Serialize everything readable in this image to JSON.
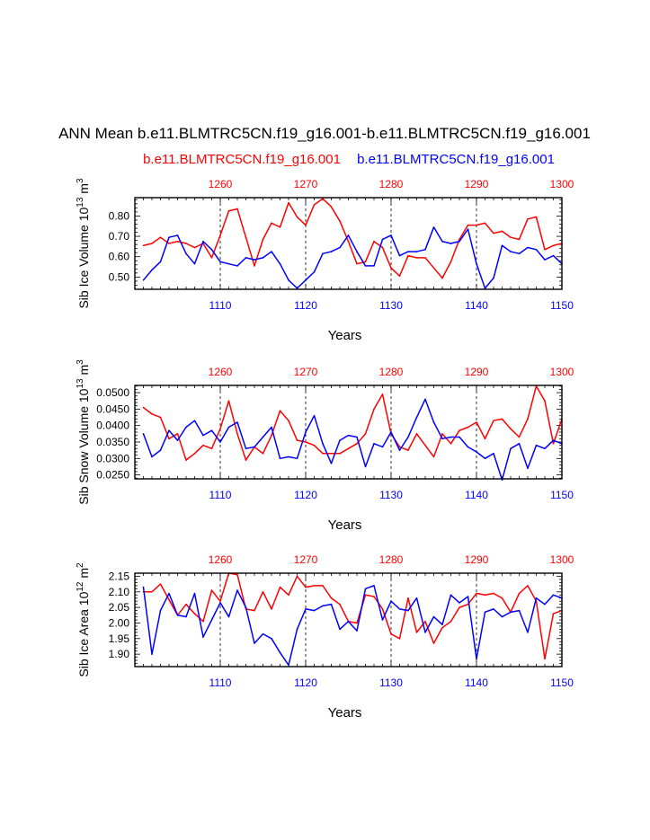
{
  "title": "ANN Mean b.e11.BLMTRC5CN.f19_g16.001-b.e11.BLMTRC5CN.f19_g16.001",
  "legend": {
    "red_label": "b.e11.BLMTRC5CN.f19_g16.001",
    "blue_label": "b.e11.BLMTRC5CN.f19_g16.001"
  },
  "colors": {
    "red": "#ff0000",
    "blue": "#0000ff",
    "axis": "#000000"
  },
  "chart_data": [
    {
      "type": "line",
      "ylabel": "Sib Ice Volume 10^13 m^3",
      "xlabel": "Years",
      "ylim": [
        0.44,
        0.89
      ],
      "yticks": [
        0.5,
        0.6,
        0.7,
        0.8
      ],
      "ytick_labels": [
        "0.50",
        "0.60",
        "0.70",
        "0.80"
      ],
      "x_bottom": {
        "range": [
          1100,
          1150
        ],
        "ticks": [
          1110,
          1120,
          1130,
          1140,
          1150
        ]
      },
      "x_top": {
        "range": [
          1250,
          1300
        ],
        "ticks": [
          1260,
          1270,
          1280,
          1290,
          1300
        ]
      },
      "vlines": [
        1110,
        1120,
        1130,
        1140
      ],
      "series": [
        {
          "name": "b.e11.BLMTRC5CN.f19_g16.001",
          "color": "red",
          "axis": "top",
          "x_start": 1251,
          "values": [
            0.655,
            0.665,
            0.695,
            0.665,
            0.675,
            0.665,
            0.645,
            0.665,
            0.595,
            0.705,
            0.825,
            0.835,
            0.695,
            0.555,
            0.685,
            0.765,
            0.745,
            0.865,
            0.795,
            0.755,
            0.855,
            0.885,
            0.845,
            0.775,
            0.675,
            0.565,
            0.575,
            0.675,
            0.645,
            0.545,
            0.505,
            0.605,
            0.595,
            0.595,
            0.545,
            0.495,
            0.575,
            0.685,
            0.755,
            0.755,
            0.765,
            0.715,
            0.725,
            0.695,
            0.685,
            0.785,
            0.795,
            0.635,
            0.655,
            0.665
          ]
        },
        {
          "name": "b.e11.BLMTRC5CN.f19_g16.001",
          "color": "blue",
          "axis": "bottom",
          "x_start": 1101,
          "values": [
            0.485,
            0.535,
            0.575,
            0.695,
            0.705,
            0.615,
            0.565,
            0.675,
            0.635,
            0.575,
            0.565,
            0.555,
            0.595,
            0.585,
            0.595,
            0.625,
            0.565,
            0.485,
            0.445,
            0.485,
            0.525,
            0.615,
            0.625,
            0.645,
            0.705,
            0.625,
            0.555,
            0.555,
            0.685,
            0.705,
            0.605,
            0.625,
            0.625,
            0.635,
            0.745,
            0.675,
            0.665,
            0.675,
            0.735,
            0.565,
            0.445,
            0.495,
            0.655,
            0.625,
            0.615,
            0.645,
            0.635,
            0.585,
            0.605,
            0.565
          ]
        }
      ]
    },
    {
      "type": "line",
      "ylabel": "Sib Snow Volume 10^13 m^3",
      "xlabel": "Years",
      "ylim": [
        0.0238,
        0.0522
      ],
      "yticks": [
        0.025,
        0.03,
        0.035,
        0.04,
        0.045,
        0.05
      ],
      "ytick_labels": [
        "0.0250",
        "0.0300",
        "0.0350",
        "0.0400",
        "0.0450",
        "0.0500"
      ],
      "x_bottom": {
        "range": [
          1100,
          1150
        ],
        "ticks": [
          1110,
          1120,
          1130,
          1140,
          1150
        ]
      },
      "x_top": {
        "range": [
          1250,
          1300
        ],
        "ticks": [
          1260,
          1270,
          1280,
          1290,
          1300
        ]
      },
      "vlines": [
        1110,
        1120,
        1130,
        1140
      ],
      "series": [
        {
          "name": "b.e11.BLMTRC5CN.f19_g16.001",
          "color": "red",
          "axis": "top",
          "x_start": 1251,
          "values": [
            0.0455,
            0.0435,
            0.0425,
            0.036,
            0.0375,
            0.0295,
            0.0315,
            0.034,
            0.033,
            0.039,
            0.0475,
            0.0375,
            0.0295,
            0.0335,
            0.0315,
            0.037,
            0.0445,
            0.0415,
            0.0355,
            0.035,
            0.034,
            0.0315,
            0.0315,
            0.0315,
            0.033,
            0.0345,
            0.0375,
            0.045,
            0.0495,
            0.0375,
            0.0335,
            0.0325,
            0.0375,
            0.034,
            0.0305,
            0.0375,
            0.0345,
            0.0385,
            0.0395,
            0.041,
            0.036,
            0.0415,
            0.042,
            0.039,
            0.0365,
            0.042,
            0.052,
            0.0475,
            0.0345,
            0.042
          ]
        },
        {
          "name": "b.e11.BLMTRC5CN.f19_g16.001",
          "color": "blue",
          "axis": "bottom",
          "x_start": 1101,
          "values": [
            0.0375,
            0.0305,
            0.0325,
            0.0385,
            0.0355,
            0.0395,
            0.0415,
            0.037,
            0.0385,
            0.035,
            0.0395,
            0.041,
            0.033,
            0.0335,
            0.0365,
            0.0395,
            0.03,
            0.0305,
            0.03,
            0.038,
            0.043,
            0.0345,
            0.0285,
            0.0355,
            0.037,
            0.0365,
            0.0275,
            0.0345,
            0.0335,
            0.038,
            0.0325,
            0.0365,
            0.0425,
            0.048,
            0.041,
            0.036,
            0.0365,
            0.0365,
            0.0335,
            0.032,
            0.03,
            0.0315,
            0.0235,
            0.033,
            0.0345,
            0.027,
            0.034,
            0.033,
            0.0355,
            0.0345
          ]
        }
      ]
    },
    {
      "type": "line",
      "ylabel": "Sib Ice Area 10^12 m^2",
      "xlabel": "Years",
      "ylim": [
        1.86,
        2.16
      ],
      "yticks": [
        1.9,
        1.95,
        2.0,
        2.05,
        2.1,
        2.15
      ],
      "ytick_labels": [
        "1.90",
        "1.95",
        "2.00",
        "2.05",
        "2.10",
        "2.15"
      ],
      "x_bottom": {
        "range": [
          1100,
          1150
        ],
        "ticks": [
          1110,
          1120,
          1130,
          1140,
          1150
        ]
      },
      "x_top": {
        "range": [
          1250,
          1300
        ],
        "ticks": [
          1260,
          1270,
          1280,
          1290,
          1300
        ]
      },
      "vlines": [
        1110,
        1120,
        1130,
        1140
      ],
      "series": [
        {
          "name": "b.e11.BLMTRC5CN.f19_g16.001",
          "color": "red",
          "axis": "top",
          "x_start": 1251,
          "values": [
            2.1,
            2.1,
            2.125,
            2.075,
            2.025,
            2.06,
            2.03,
            2.005,
            2.105,
            2.07,
            2.16,
            2.155,
            2.045,
            2.04,
            2.1,
            2.045,
            2.115,
            2.09,
            2.15,
            2.115,
            2.12,
            2.12,
            2.08,
            2.06,
            2.005,
            2.0,
            2.09,
            2.085,
            2.045,
            1.965,
            1.95,
            2.08,
            1.97,
            2.005,
            1.935,
            1.985,
            2.005,
            2.05,
            2.06,
            2.095,
            2.09,
            2.095,
            2.08,
            2.035,
            2.095,
            2.12,
            2.07,
            1.885,
            2.03,
            2.04
          ]
        },
        {
          "name": "b.e11.BLMTRC5CN.f19_g16.001",
          "color": "blue",
          "axis": "bottom",
          "x_start": 1101,
          "values": [
            2.115,
            1.9,
            2.04,
            2.095,
            2.025,
            2.02,
            2.095,
            1.955,
            2.01,
            2.065,
            2.02,
            2.105,
            2.05,
            1.935,
            1.965,
            1.95,
            1.905,
            1.865,
            1.98,
            2.045,
            2.04,
            2.055,
            2.06,
            1.98,
            2.005,
            1.975,
            2.11,
            2.12,
            2.01,
            2.07,
            2.045,
            2.04,
            2.08,
            1.97,
            2.02,
            1.995,
            2.09,
            2.065,
            2.085,
            1.885,
            2.035,
            2.045,
            2.02,
            2.035,
            2.04,
            1.97,
            2.08,
            2.06,
            2.09,
            2.08
          ]
        }
      ]
    }
  ]
}
